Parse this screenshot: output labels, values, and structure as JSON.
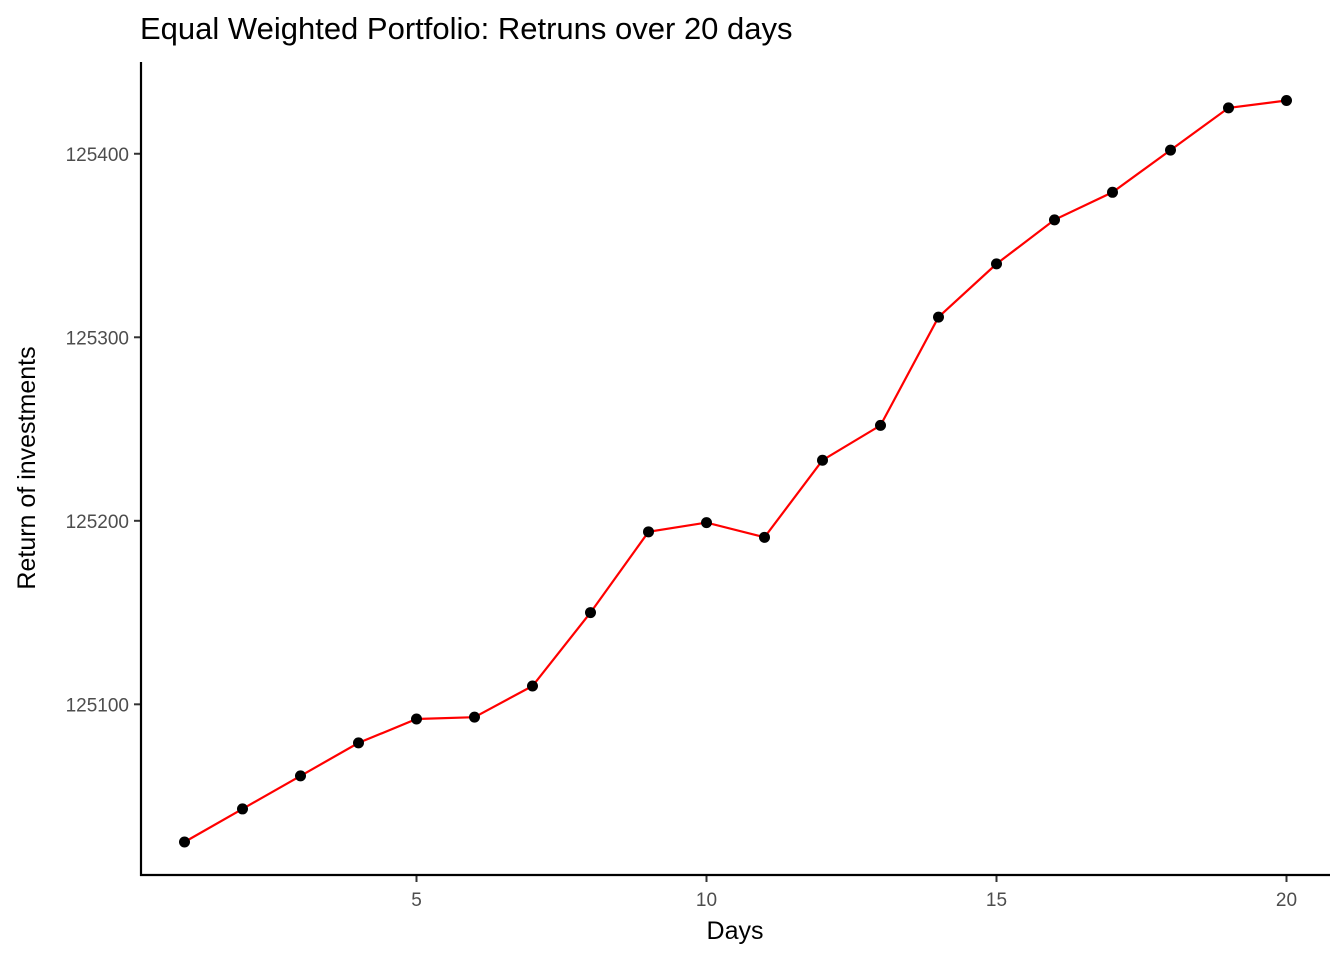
{
  "chart_data": {
    "type": "line",
    "title": "Equal Weighted Portfolio: Retruns over 20 days",
    "xlabel": "Days",
    "ylabel": "Return of investments",
    "x": [
      1,
      2,
      3,
      4,
      5,
      6,
      7,
      8,
      9,
      10,
      11,
      12,
      13,
      14,
      15,
      16,
      17,
      18,
      19,
      20
    ],
    "series": [
      {
        "values": [
          125025,
          125043,
          125061,
          125079,
          125092,
          125093,
          125110,
          125150,
          125194,
          125199,
          125191,
          125233,
          125252,
          125311,
          125340,
          125364,
          125379,
          125402,
          125425,
          125429
        ],
        "line_color": "#ff0000",
        "point_color": "#000000"
      }
    ],
    "xlim": [
      0.25,
      20.75
    ],
    "ylim": [
      125007,
      125450
    ],
    "xticks": [
      5,
      10,
      15,
      20
    ],
    "yticks": [
      125100,
      125200,
      125300,
      125400
    ],
    "grid": false,
    "legend": "none"
  }
}
